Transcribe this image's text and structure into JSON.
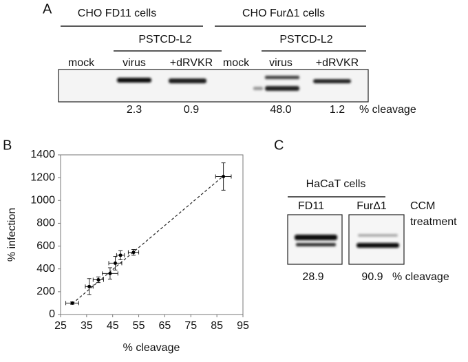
{
  "panel_a": {
    "label": "A",
    "groups": [
      "CHO FD11 cells",
      "CHO FurΔ1 cells"
    ],
    "subgroups": [
      "PSTCD-L2",
      "PSTCD-L2"
    ],
    "lanes": [
      "mock",
      "virus",
      "+dRVKR",
      "mock",
      "virus",
      "+dRVKR"
    ],
    "cleavage": [
      "2.3",
      "0.9",
      "48.0",
      "1.2"
    ],
    "cleavage_unit": "% cleavage"
  },
  "chart_data": {
    "type": "scatter",
    "label": "B",
    "x_label": "% cleavage",
    "y_label": "% infection",
    "x": [
      29.5,
      36,
      39.5,
      44,
      46,
      48,
      53,
      87.5
    ],
    "values": [
      100,
      245,
      305,
      360,
      450,
      520,
      545,
      1210
    ],
    "x_errors": [
      2.5,
      1.5,
      2,
      3,
      2.5,
      1.5,
      2,
      3
    ],
    "y_errors": [
      10,
      70,
      25,
      50,
      60,
      40,
      25,
      120
    ],
    "trendline": {
      "x": [
        29.5,
        87.5
      ],
      "y": [
        95,
        1215
      ]
    },
    "xlim": [
      25,
      95
    ],
    "xticks": [
      25,
      35,
      45,
      55,
      65,
      75,
      85,
      95
    ],
    "ylim": [
      0,
      1400
    ],
    "yticks": [
      0,
      200,
      400,
      600,
      800,
      1000,
      1200,
      1400
    ],
    "color": "#000000"
  },
  "panel_c": {
    "label": "C",
    "group": "HaCaT cells",
    "lanes": [
      "FD11",
      "FurΔ1"
    ],
    "note": [
      "CCM",
      "treatment"
    ],
    "cleavage": [
      "28.9",
      "90.9"
    ],
    "cleavage_unit": "% cleavage"
  }
}
